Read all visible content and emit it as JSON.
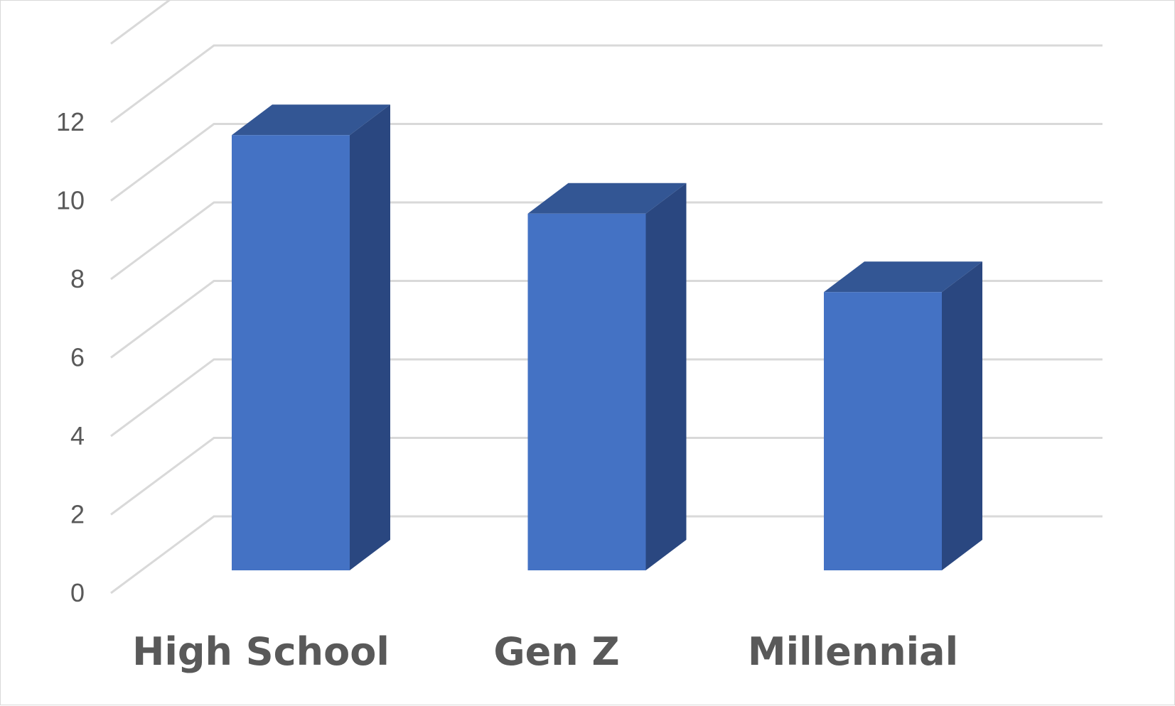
{
  "chart_data": {
    "type": "bar",
    "style": "3d-column",
    "categories": [
      "High School",
      "Gen Z",
      "Millennial"
    ],
    "values": [
      11,
      9,
      7
    ],
    "title": "",
    "xlabel": "",
    "ylabel": "",
    "ylim": [
      0,
      12
    ],
    "yticks": [
      "0",
      "2",
      "4",
      "6",
      "8",
      "10",
      "12"
    ],
    "grid": true,
    "legend": "none",
    "colors": {
      "bar_front": "#4472c4",
      "bar_top": "#335694",
      "bar_side": "#2a4780",
      "gridline": "#d9d9d9",
      "text": "#595959"
    }
  }
}
